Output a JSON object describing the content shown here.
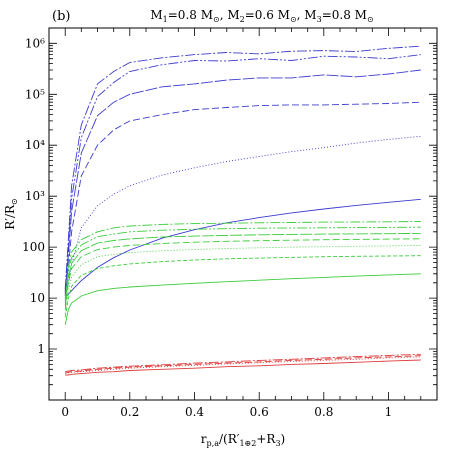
{
  "chart_data": {
    "type": "line",
    "panel_label": "(b)",
    "title": "M1=0.8 M⊙, M2=0.6 M⊙, M3=0.8 M⊙",
    "xlabel": "rp,a/(R′1⊕2+R3)",
    "ylabel": "R′/R⊙",
    "xlim": [
      -0.05,
      1.15
    ],
    "ylim": [
      0.1,
      2000000
    ],
    "yscale": "log",
    "grid": false,
    "x_ticks": [
      0,
      0.2,
      0.4,
      0.6,
      0.8,
      1
    ],
    "x_tick_labels": [
      "0",
      "0.2",
      "0.4",
      "0.6",
      "0.8",
      "1"
    ],
    "y_ticks": [
      1,
      10,
      100,
      1000,
      10000,
      100000,
      1000000
    ],
    "y_tick_labels": [
      "1",
      "10",
      "100",
      "10³",
      "10⁴",
      "10⁵",
      "10⁶"
    ],
    "colors": {
      "blue": "#3c3cd0",
      "green": "#3ccc3c",
      "red": "#e03c3c"
    },
    "x": [
      0,
      0.01,
      0.02,
      0.05,
      0.1,
      0.15,
      0.2,
      0.3,
      0.4,
      0.5,
      0.6,
      0.7,
      0.8,
      0.9,
      1.0,
      1.1
    ],
    "series": [
      {
        "color": "blue",
        "dash": "10,2,2,2",
        "values": [
          15,
          150,
          1600,
          25000,
          160000,
          280000,
          420000,
          520000,
          600000,
          660000,
          620000,
          700000,
          720000,
          690000,
          800000,
          880000
        ]
      },
      {
        "color": "blue",
        "dash": "10,2,2,2,2,2",
        "values": [
          13,
          100,
          900,
          14000,
          90000,
          170000,
          280000,
          380000,
          460000,
          450000,
          500000,
          460000,
          560000,
          540000,
          500000,
          600000
        ]
      },
      {
        "color": "blue",
        "dash": "12,2",
        "values": [
          12,
          70,
          500,
          7000,
          38000,
          70000,
          100000,
          140000,
          160000,
          190000,
          210000,
          210000,
          240000,
          220000,
          250000,
          300000
        ]
      },
      {
        "color": "blue",
        "dash": "7,3",
        "values": [
          11,
          40,
          200,
          2500,
          10000,
          20000,
          30000,
          40000,
          50000,
          55000,
          60000,
          62000,
          62000,
          64000,
          66000,
          70000
        ]
      },
      {
        "color": "blue",
        "dash": "1,2",
        "values": [
          10,
          20,
          45,
          240,
          650,
          1100,
          1600,
          2600,
          3600,
          4800,
          6000,
          7500,
          9000,
          11000,
          13000,
          15000
        ]
      },
      {
        "color": "blue",
        "dash": "",
        "values": [
          10,
          12,
          14,
          22,
          40,
          62,
          88,
          150,
          220,
          300,
          380,
          470,
          560,
          660,
          760,
          870
        ]
      },
      {
        "color": "green",
        "dash": "10,2,2,2",
        "values": [
          9,
          40,
          80,
          140,
          200,
          240,
          260,
          280,
          290,
          295,
          300,
          305,
          310,
          312,
          315,
          318
        ]
      },
      {
        "color": "green",
        "dash": "10,2,2,2,2,2",
        "values": [
          8,
          32,
          62,
          110,
          160,
          180,
          200,
          215,
          225,
          230,
          235,
          238,
          240,
          242,
          244,
          246
        ]
      },
      {
        "color": "green",
        "dash": "12,2",
        "values": [
          7,
          25,
          48,
          85,
          120,
          135,
          145,
          158,
          165,
          170,
          175,
          178,
          180,
          182,
          184,
          186
        ]
      },
      {
        "color": "green",
        "dash": "7,3",
        "values": [
          6,
          20,
          38,
          65,
          90,
          100,
          108,
          118,
          125,
          130,
          134,
          137,
          140,
          142,
          144,
          146
        ]
      },
      {
        "color": "green",
        "dash": "1,2",
        "values": [
          5,
          14,
          26,
          45,
          65,
          72,
          78,
          85,
          90,
          94,
          97,
          100,
          102,
          104,
          106,
          108
        ]
      },
      {
        "color": "green",
        "dash": "4,2",
        "values": [
          4.2,
          10,
          17,
          28,
          38,
          43,
          47,
          52,
          56,
          59,
          61,
          63,
          65,
          66,
          67,
          68
        ]
      },
      {
        "color": "green",
        "dash": "",
        "values": [
          3,
          6,
          8,
          11,
          14,
          15.5,
          16.5,
          18,
          19.5,
          21,
          22.5,
          24,
          25.5,
          27,
          28.5,
          30
        ]
      },
      {
        "color": "red",
        "dash": "10,2,2,2",
        "values": [
          0.36,
          0.37,
          0.38,
          0.39,
          0.42,
          0.44,
          0.46,
          0.49,
          0.53,
          0.56,
          0.6,
          0.63,
          0.67,
          0.71,
          0.75,
          0.79
        ]
      },
      {
        "color": "red",
        "dash": "7,3",
        "values": [
          0.34,
          0.35,
          0.36,
          0.37,
          0.4,
          0.42,
          0.44,
          0.47,
          0.5,
          0.53,
          0.56,
          0.6,
          0.63,
          0.67,
          0.7,
          0.74
        ]
      },
      {
        "color": "red",
        "dash": "1,2",
        "values": [
          0.33,
          0.34,
          0.35,
          0.36,
          0.38,
          0.4,
          0.42,
          0.45,
          0.48,
          0.51,
          0.54,
          0.57,
          0.6,
          0.63,
          0.67,
          0.7
        ]
      },
      {
        "color": "red",
        "dash": "",
        "values": [
          0.31,
          0.31,
          0.32,
          0.33,
          0.35,
          0.36,
          0.38,
          0.4,
          0.42,
          0.45,
          0.47,
          0.5,
          0.52,
          0.55,
          0.58,
          0.61
        ]
      }
    ]
  }
}
